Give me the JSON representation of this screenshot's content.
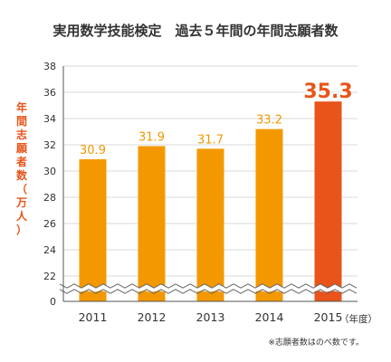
{
  "chart_data": {
    "type": "bar",
    "title": "実用数学技能検定　過去５年間の年間志願者数",
    "ylabel": "年間志願者数（万人）",
    "xunit": "（年度）",
    "categories": [
      "2011",
      "2012",
      "2013",
      "2014",
      "2015"
    ],
    "values": [
      30.9,
      31.9,
      31.7,
      33.2,
      35.3
    ],
    "value_labels": [
      "30.9",
      "31.9",
      "31.7",
      "33.2",
      "35.3"
    ],
    "yticks": [
      "0",
      "22",
      "24",
      "26",
      "28",
      "30",
      "32",
      "34",
      "36",
      "38"
    ],
    "ylim": [
      0,
      38
    ],
    "axis_break": [
      0,
      22
    ],
    "grid": true,
    "note": "※志願者数はのべ数です。",
    "colors": {
      "bar": "#f39800",
      "highlight": "#e8541a",
      "grid": "#d9d9d9",
      "text": "#333333"
    },
    "highlight_index": 4
  }
}
